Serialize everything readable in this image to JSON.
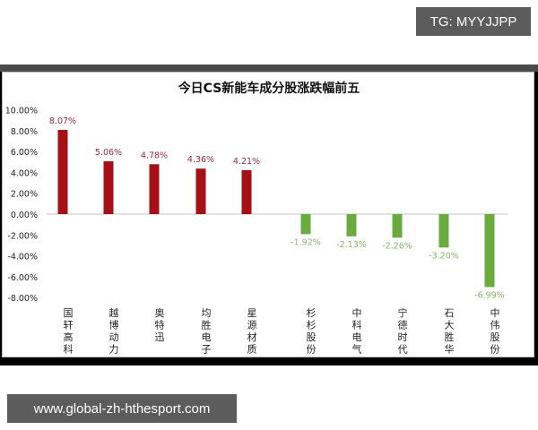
{
  "watermark": {
    "tg": "TG: MYYJJPP",
    "url": "www.global-zh-hthesport.com"
  },
  "colors": {
    "positive_bar": "#a50f15",
    "negative_bar": "#6aab3f",
    "positive_label": "#9b2a3a",
    "negative_label": "#8db36e",
    "axis_text": "#222222",
    "zero_line": "#d9d9d9"
  },
  "chart_data": {
    "type": "bar",
    "title": "今日CS新能车成分股涨跌幅前五",
    "xlabel": "",
    "ylabel": "",
    "ylim": [
      -8,
      10
    ],
    "yticks": [
      "10.00%",
      "8.00%",
      "6.00%",
      "4.00%",
      "2.00%",
      "0.00%",
      "-2.00%",
      "-4.00%",
      "-6.00%",
      "-8.00%"
    ],
    "grid": false,
    "legend": null,
    "categories": [
      "国轩高科",
      "越博动力",
      "奥特迅",
      "均胜电子",
      "星源材质",
      "杉杉股份",
      "中科电气",
      "宁德时代",
      "石大胜华",
      "中伟股份"
    ],
    "values": [
      8.07,
      5.06,
      4.78,
      4.36,
      4.21,
      -1.92,
      -2.13,
      -2.26,
      -3.2,
      -6.99
    ],
    "value_labels": [
      "8.07%",
      "5.06%",
      "4.78%",
      "4.36%",
      "4.21%",
      "-1.92%",
      "-2.13%",
      "-2.26%",
      "-3.20%",
      "-6.99%"
    ],
    "series_notes": {
      "top_gainers": [
        "国轩高科",
        "越博动力",
        "奥特迅",
        "均胜电子",
        "星源材质"
      ],
      "top_losers": [
        "杉杉股份",
        "中科电气",
        "宁德时代",
        "石大胜华",
        "中伟股份"
      ]
    }
  }
}
